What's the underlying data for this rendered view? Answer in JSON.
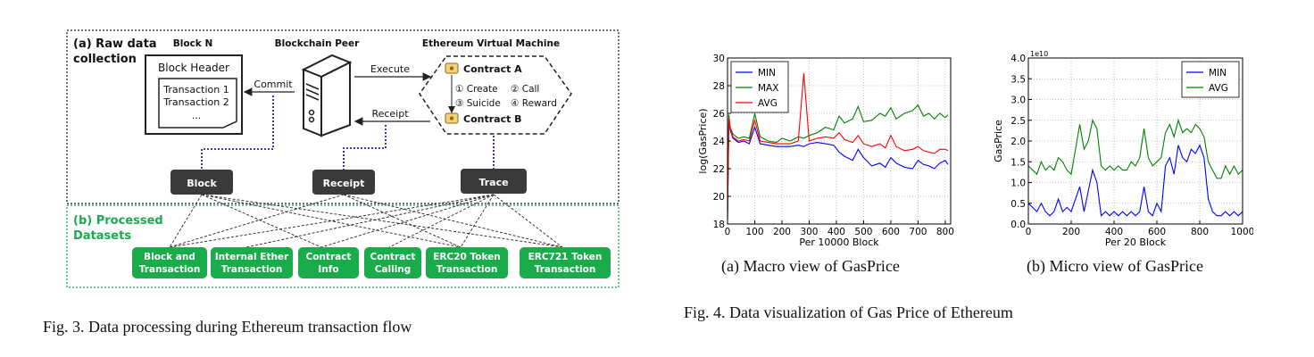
{
  "fig3": {
    "caption": "Fig. 3.   Data processing during Ethereum transaction flow",
    "section_a": "(a) Raw data",
    "section_a_line2": "collection",
    "section_b": "(b) Processed",
    "section_b_line2": "Datasets",
    "block_n": "Block N",
    "block_header": "Block Header",
    "tx1": "Transaction 1",
    "tx2": "Transaction 2",
    "ellipsis": "...",
    "blockchain_peer": "Blockchain Peer",
    "evm": "Ethereum Virtual Machine",
    "commit": "Commit",
    "execute": "Execute",
    "receipt_arrow": "Receipt",
    "contract_a": "Contract A",
    "contract_b": "Contract B",
    "op1": "① Create",
    "op2": "② Call",
    "op3": "③ Suicide",
    "op4": "④ Reward",
    "node_block": "Block",
    "node_receipt": "Receipt",
    "node_trace": "Trace",
    "datasets": [
      [
        "Block and",
        "Transaction"
      ],
      [
        "Internal Ether",
        "Transaction"
      ],
      [
        "Contract",
        "Info"
      ],
      [
        "Contract",
        "Calling"
      ],
      [
        "ERC20 Token",
        "Transaction"
      ],
      [
        "ERC721 Token",
        "Transaction"
      ]
    ],
    "colors": {
      "green": "#1aab4a",
      "dark": "#3a3a3a",
      "blue_dot": "#2222aa"
    }
  },
  "fig4": {
    "caption": "Fig. 4.   Data visualization of Gas Price of Ethereum",
    "sub_a_caption": "(a)  Macro view of GasPrice",
    "sub_b_caption": "(b)  Micro view of GasPrice"
  },
  "chart_data": [
    {
      "type": "line",
      "xlabel": "Per 10000 Block",
      "ylabel": "log(GasPrice)",
      "xlim": [
        0,
        820
      ],
      "ylim": [
        18,
        30
      ],
      "xticks": [
        0,
        100,
        200,
        300,
        400,
        500,
        600,
        700,
        800
      ],
      "yticks": [
        18,
        20,
        22,
        24,
        26,
        28,
        30
      ],
      "grid": true,
      "legend": "top-left",
      "x": [
        0,
        5,
        10,
        20,
        40,
        60,
        80,
        100,
        120,
        150,
        180,
        200,
        230,
        260,
        280,
        300,
        330,
        360,
        390,
        410,
        430,
        460,
        480,
        500,
        530,
        560,
        580,
        600,
        620,
        650,
        680,
        700,
        720,
        740,
        760,
        780,
        800,
        810
      ],
      "series": [
        {
          "name": "MIN",
          "color": "#0000ff",
          "values": [
            18.5,
            25.5,
            24.8,
            24.2,
            23.9,
            24.0,
            23.8,
            25.0,
            23.8,
            23.7,
            23.6,
            23.6,
            23.6,
            23.7,
            23.6,
            23.8,
            23.9,
            23.8,
            23.7,
            23.2,
            22.9,
            22.6,
            23.4,
            22.8,
            22.2,
            22.4,
            22.1,
            22.8,
            22.4,
            22.1,
            22.0,
            22.6,
            22.3,
            22.2,
            22.0,
            22.4,
            22.6,
            22.3
          ]
        },
        {
          "name": "MAX",
          "color": "#008000",
          "values": [
            18.3,
            25.9,
            25.0,
            24.5,
            24.2,
            24.3,
            24.2,
            26.0,
            24.3,
            24.0,
            23.9,
            24.2,
            24.0,
            24.3,
            24.2,
            24.4,
            24.6,
            25.0,
            24.8,
            25.8,
            25.3,
            25.6,
            26.5,
            25.4,
            25.5,
            26.0,
            25.8,
            26.4,
            25.6,
            26.0,
            26.2,
            26.6,
            25.8,
            26.0,
            25.6,
            26.0,
            25.7,
            25.9
          ]
        },
        {
          "name": "AVG",
          "color": "#ff0000",
          "values": [
            18.4,
            25.7,
            24.9,
            24.3,
            24.0,
            24.1,
            24.0,
            25.5,
            24.0,
            23.9,
            23.8,
            23.8,
            23.8,
            24.0,
            28.9,
            24.0,
            24.2,
            24.3,
            24.2,
            24.6,
            24.1,
            23.9,
            24.4,
            23.8,
            23.6,
            23.8,
            23.5,
            24.4,
            23.6,
            23.3,
            23.4,
            23.6,
            23.3,
            23.2,
            23.1,
            23.4,
            23.4,
            23.3
          ]
        }
      ]
    },
    {
      "type": "line",
      "xlabel": "Per 20 Block",
      "ylabel": "GasPrice",
      "scale_label": "1e10",
      "xlim": [
        0,
        1000
      ],
      "ylim": [
        0,
        4.0
      ],
      "xticks": [
        0,
        200,
        400,
        600,
        800,
        1000
      ],
      "yticks": [
        0.0,
        0.5,
        1.0,
        1.5,
        2.0,
        2.5,
        3.0,
        3.5,
        4.0
      ],
      "grid": true,
      "legend": "top-right",
      "x": [
        0,
        20,
        40,
        60,
        80,
        100,
        120,
        140,
        160,
        180,
        200,
        220,
        240,
        260,
        280,
        300,
        320,
        340,
        360,
        380,
        400,
        420,
        440,
        460,
        480,
        500,
        520,
        540,
        560,
        580,
        600,
        620,
        640,
        660,
        680,
        700,
        720,
        740,
        760,
        780,
        800,
        820,
        840,
        860,
        880,
        900,
        920,
        940,
        960,
        980,
        1000
      ],
      "series": [
        {
          "name": "MIN",
          "color": "#0000ff",
          "values": [
            0.5,
            0.4,
            0.3,
            0.5,
            0.3,
            0.2,
            0.3,
            0.6,
            0.3,
            0.4,
            0.3,
            0.6,
            0.9,
            0.3,
            0.8,
            1.3,
            1.0,
            0.2,
            0.3,
            0.2,
            0.3,
            0.2,
            0.3,
            0.2,
            0.3,
            0.2,
            0.3,
            0.9,
            0.3,
            0.2,
            0.5,
            0.3,
            1.4,
            1.6,
            1.2,
            1.9,
            1.6,
            1.5,
            1.8,
            1.7,
            1.9,
            1.6,
            0.6,
            0.3,
            0.2,
            0.2,
            0.3,
            0.2,
            0.3,
            0.2,
            0.3
          ]
        },
        {
          "name": "AVG",
          "color": "#008000",
          "values": [
            1.4,
            1.3,
            1.2,
            1.5,
            1.3,
            1.4,
            1.3,
            1.6,
            1.5,
            1.3,
            1.2,
            1.8,
            2.4,
            1.8,
            2.0,
            2.5,
            2.3,
            1.4,
            1.3,
            1.4,
            1.3,
            1.4,
            1.3,
            1.3,
            1.5,
            1.4,
            1.6,
            2.3,
            1.6,
            1.4,
            1.5,
            1.6,
            2.2,
            2.4,
            2.1,
            2.5,
            2.2,
            2.3,
            2.2,
            2.4,
            2.3,
            2.1,
            1.5,
            1.3,
            1.1,
            1.1,
            1.4,
            1.2,
            1.4,
            1.2,
            1.3
          ]
        }
      ]
    }
  ]
}
